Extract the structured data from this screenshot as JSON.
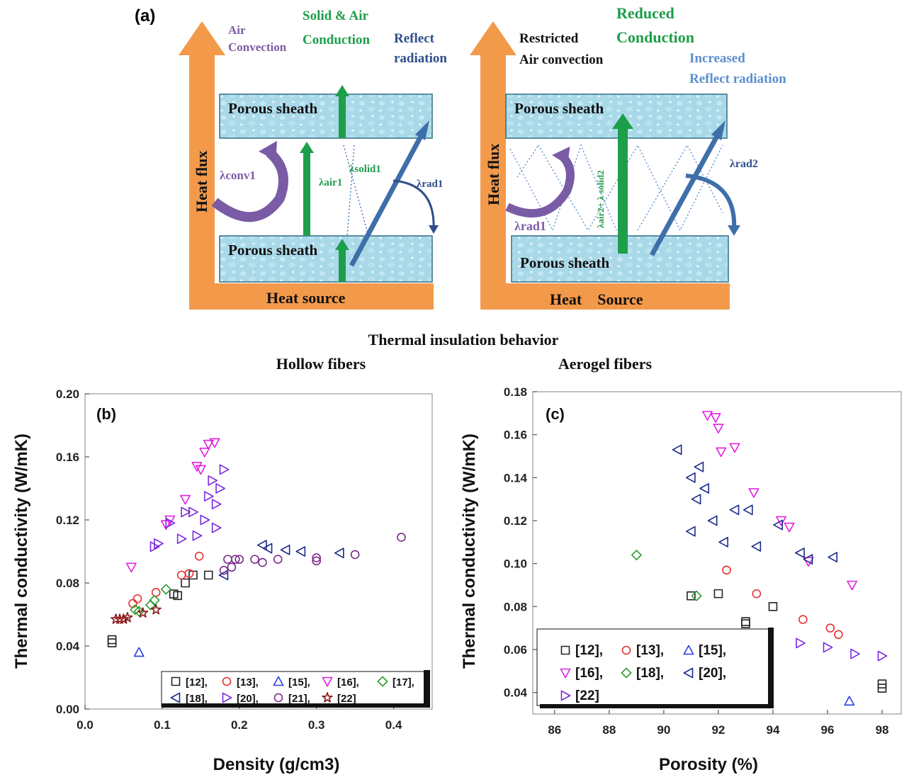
{
  "figure": {
    "panel_a": {
      "label": "(a)",
      "caption": "Thermal insulation behavior",
      "left": {
        "sheath_top": "Porous sheath",
        "sheath_bottom": "Porous sheath",
        "heat_source": "Heat source",
        "heat_flux": "Heat   flux",
        "air_convection": [
          "Air",
          "Convection"
        ],
        "solid_air_conduction": [
          "Solid & Air",
          "Conduction"
        ],
        "reflect_radiation": [
          "Reflect",
          "radiation"
        ],
        "lambda_conv": "λconv1",
        "lambda_air": "λair1",
        "lambda_solid": "λsolid1",
        "lambda_rad": "λrad1"
      },
      "right": {
        "sheath_top": "Porous sheath",
        "sheath_bottom": "Porous sheath",
        "heat_source": "Heat    Source",
        "heat_flux": "Heat   flux",
        "restricted": [
          "Restricted",
          "Air convection"
        ],
        "reduced": [
          "Reduced",
          "Conduction"
        ],
        "increased": [
          "Increased",
          "Reflect radiation"
        ],
        "lambda_rad1": "λrad1",
        "lambda_air_solid": "λair2+ λ solid2",
        "lambda_rad2": "λrad2"
      }
    },
    "colors": {
      "orange": "#F39A4A",
      "sheath": "#A8D8E8",
      "green": "#1E9E4A",
      "blue_arrow": "#3E6FA8",
      "purple": "#7A5BA5",
      "navy": "#2F4F8A",
      "light_blue": "#5B8FCF"
    }
  },
  "chart_data": [
    {
      "type": "scatter",
      "panel_label": "(b)",
      "title": "Hollow fibers",
      "xlabel": "Density (g/cm3)",
      "ylabel": "Thermal conductivity (W/mK)",
      "xlim": [
        0.0,
        0.45
      ],
      "ylim": [
        0.0,
        0.2
      ],
      "xticks": [
        "0.0",
        "0.1",
        "0.2",
        "0.3",
        "0.4"
      ],
      "yticks": [
        "0.00",
        "0.04",
        "0.08",
        "0.12",
        "0.16",
        "0.20"
      ],
      "legend": [
        "[12],",
        "[13],",
        "[15],",
        "[16],",
        "[17],",
        "[18],",
        "[20],",
        "[21],",
        "[22]"
      ],
      "series": [
        {
          "name": "[12]",
          "marker": "square",
          "color": "#222222",
          "points": [
            [
              0.035,
              0.042
            ],
            [
              0.035,
              0.044
            ],
            [
              0.115,
              0.073
            ],
            [
              0.12,
              0.072
            ],
            [
              0.13,
              0.08
            ],
            [
              0.14,
              0.085
            ],
            [
              0.16,
              0.085
            ]
          ]
        },
        {
          "name": "[13]",
          "marker": "circle",
          "color": "#E53030",
          "points": [
            [
              0.062,
              0.067
            ],
            [
              0.068,
              0.07
            ],
            [
              0.092,
              0.074
            ],
            [
              0.125,
              0.085
            ],
            [
              0.135,
              0.086
            ],
            [
              0.148,
              0.097
            ]
          ]
        },
        {
          "name": "[15]",
          "marker": "triangle-up",
          "color": "#2A3FE0",
          "points": [
            [
              0.07,
              0.036
            ]
          ]
        },
        {
          "name": "[16]",
          "marker": "triangle-down",
          "color": "#E020E0",
          "points": [
            [
              0.06,
              0.09
            ],
            [
              0.105,
              0.117
            ],
            [
              0.11,
              0.12
            ],
            [
              0.13,
              0.133
            ],
            [
              0.145,
              0.154
            ],
            [
              0.15,
              0.152
            ],
            [
              0.155,
              0.163
            ],
            [
              0.16,
              0.168
            ],
            [
              0.168,
              0.169
            ]
          ]
        },
        {
          "name": "[17]",
          "marker": "diamond",
          "color": "#2E9A2E",
          "points": [
            [
              0.065,
              0.063
            ],
            [
              0.07,
              0.062
            ],
            [
              0.085,
              0.066
            ],
            [
              0.09,
              0.069
            ],
            [
              0.105,
              0.076
            ]
          ]
        },
        {
          "name": "[18]",
          "marker": "triangle-left",
          "color": "#1A2A8A",
          "points": [
            [
              0.18,
              0.085
            ],
            [
              0.23,
              0.104
            ],
            [
              0.237,
              0.102
            ],
            [
              0.26,
              0.101
            ],
            [
              0.28,
              0.1
            ],
            [
              0.33,
              0.099
            ]
          ]
        },
        {
          "name": "[20]",
          "marker": "triangle-right",
          "color": "#7A2AE0",
          "points": [
            [
              0.09,
              0.103
            ],
            [
              0.095,
              0.105
            ],
            [
              0.11,
              0.118
            ],
            [
              0.125,
              0.108
            ],
            [
              0.13,
              0.125
            ],
            [
              0.14,
              0.125
            ],
            [
              0.145,
              0.11
            ],
            [
              0.155,
              0.12
            ],
            [
              0.16,
              0.135
            ],
            [
              0.165,
              0.145
            ],
            [
              0.17,
              0.13
            ],
            [
              0.17,
              0.115
            ],
            [
              0.175,
              0.14
            ],
            [
              0.18,
              0.152
            ]
          ]
        },
        {
          "name": "[21]",
          "marker": "circle",
          "color": "#7A2A8A",
          "points": [
            [
              0.18,
              0.088
            ],
            [
              0.185,
              0.095
            ],
            [
              0.19,
              0.09
            ],
            [
              0.195,
              0.095
            ],
            [
              0.2,
              0.095
            ],
            [
              0.22,
              0.095
            ],
            [
              0.23,
              0.093
            ],
            [
              0.25,
              0.095
            ],
            [
              0.3,
              0.096
            ],
            [
              0.3,
              0.094
            ],
            [
              0.35,
              0.098
            ],
            [
              0.41,
              0.109
            ]
          ]
        },
        {
          "name": "[22]",
          "marker": "star",
          "color": "#8B1A1A",
          "points": [
            [
              0.04,
              0.057
            ],
            [
              0.045,
              0.057
            ],
            [
              0.05,
              0.057
            ],
            [
              0.055,
              0.058
            ],
            [
              0.075,
              0.061
            ],
            [
              0.092,
              0.063
            ]
          ]
        }
      ]
    },
    {
      "type": "scatter",
      "panel_label": "(c)",
      "title": "Aerogel fibers",
      "xlabel": "Porosity (%)",
      "ylabel": "Thermal conductivity (W/mK)",
      "xlim": [
        85.2,
        98.7
      ],
      "ylim": [
        0.03,
        0.18
      ],
      "xticks": [
        "86",
        "88",
        "90",
        "92",
        "94",
        "96",
        "98"
      ],
      "yticks": [
        "0.04",
        "0.06",
        "0.08",
        "0.10",
        "0.12",
        "0.14",
        "0.16",
        "0.18"
      ],
      "legend": [
        "[12],",
        "[13],",
        "[15],",
        "[16],",
        "[18],",
        "[20],",
        "[22]"
      ],
      "series": [
        {
          "name": "[12]",
          "marker": "square",
          "color": "#222222",
          "points": [
            [
              91.0,
              0.085
            ],
            [
              92.0,
              0.086
            ],
            [
              93.0,
              0.072
            ],
            [
              93.0,
              0.073
            ],
            [
              94.0,
              0.08
            ],
            [
              98.0,
              0.042
            ],
            [
              98.0,
              0.044
            ]
          ]
        },
        {
          "name": "[13]",
          "marker": "circle",
          "color": "#E53030",
          "points": [
            [
              92.3,
              0.097
            ],
            [
              93.4,
              0.086
            ],
            [
              95.1,
              0.074
            ],
            [
              96.1,
              0.07
            ],
            [
              96.4,
              0.067
            ]
          ]
        },
        {
          "name": "[15]",
          "marker": "triangle-up",
          "color": "#2A3FE0",
          "points": [
            [
              96.8,
              0.036
            ]
          ]
        },
        {
          "name": "[16]",
          "marker": "triangle-down",
          "color": "#E020E0",
          "points": [
            [
              91.6,
              0.169
            ],
            [
              91.9,
              0.168
            ],
            [
              92.0,
              0.163
            ],
            [
              92.1,
              0.152
            ],
            [
              92.6,
              0.154
            ],
            [
              93.3,
              0.133
            ],
            [
              94.3,
              0.12
            ],
            [
              94.6,
              0.117
            ],
            [
              95.3,
              0.101
            ],
            [
              96.9,
              0.09
            ]
          ]
        },
        {
          "name": "[18]",
          "marker": "diamond",
          "color": "#2E9A2E",
          "points": [
            [
              89.0,
              0.104
            ],
            [
              91.2,
              0.085
            ]
          ]
        },
        {
          "name": "[20]",
          "marker": "triangle-left",
          "color": "#1A2A8A",
          "points": [
            [
              90.5,
              0.153
            ],
            [
              91.0,
              0.14
            ],
            [
              91.2,
              0.13
            ],
            [
              91.0,
              0.115
            ],
            [
              91.3,
              0.145
            ],
            [
              91.5,
              0.135
            ],
            [
              91.8,
              0.12
            ],
            [
              92.2,
              0.11
            ],
            [
              92.6,
              0.125
            ],
            [
              93.1,
              0.125
            ],
            [
              93.4,
              0.108
            ],
            [
              94.2,
              0.118
            ],
            [
              95.0,
              0.105
            ],
            [
              95.3,
              0.102
            ],
            [
              96.2,
              0.103
            ]
          ]
        },
        {
          "name": "[22]",
          "marker": "triangle-right",
          "color": "#7A2AE0",
          "points": [
            [
              95.0,
              0.063
            ],
            [
              96.0,
              0.061
            ],
            [
              97.0,
              0.058
            ],
            [
              98.0,
              0.057
            ]
          ]
        }
      ]
    }
  ]
}
